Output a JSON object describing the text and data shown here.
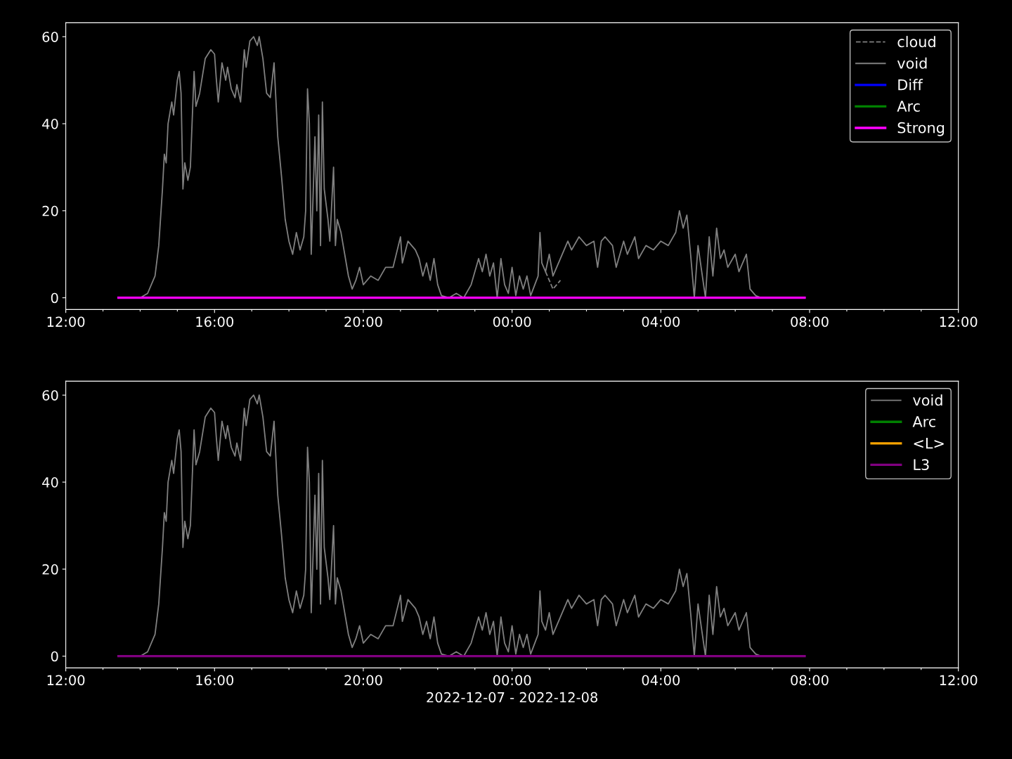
{
  "chart_data": [
    {
      "type": "line",
      "xlim": [
        "2022-12-07T12:00",
        "2022-12-08T12:00"
      ],
      "ylim": [
        -2.7,
        63.2
      ],
      "yticks": [
        0,
        20,
        40,
        60
      ],
      "xticks": [
        {
          "value": "2022-12-07T12:00",
          "label": "12:00"
        },
        {
          "value": "2022-12-07T13:00",
          "label": null
        },
        {
          "value": "2022-12-07T14:00",
          "label": null
        },
        {
          "value": "2022-12-07T15:00",
          "label": null
        },
        {
          "value": "2022-12-07T16:00",
          "label": "16:00"
        },
        {
          "value": "2022-12-07T17:00",
          "label": null
        },
        {
          "value": "2022-12-07T18:00",
          "label": null
        },
        {
          "value": "2022-12-07T19:00",
          "label": null
        },
        {
          "value": "2022-12-07T20:00",
          "label": "20:00"
        },
        {
          "value": "2022-12-07T21:00",
          "label": null
        },
        {
          "value": "2022-12-07T22:00",
          "label": null
        },
        {
          "value": "2022-12-07T23:00",
          "label": null
        },
        {
          "value": "2022-12-08T00:00",
          "label": "00:00"
        },
        {
          "value": "2022-12-08T01:00",
          "label": null
        },
        {
          "value": "2022-12-08T02:00",
          "label": null
        },
        {
          "value": "2022-12-08T03:00",
          "label": null
        },
        {
          "value": "2022-12-08T04:00",
          "label": "04:00"
        },
        {
          "value": "2022-12-08T05:00",
          "label": null
        },
        {
          "value": "2022-12-08T06:00",
          "label": null
        },
        {
          "value": "2022-12-08T07:00",
          "label": null
        },
        {
          "value": "2022-12-08T08:00",
          "label": "08:00"
        },
        {
          "value": "2022-12-08T09:00",
          "label": null
        },
        {
          "value": "2022-12-08T10:00",
          "label": null
        },
        {
          "value": "2022-12-08T11:00",
          "label": null
        },
        {
          "value": "2022-12-08T12:00",
          "label": "12:00"
        }
      ],
      "legend": "top right",
      "grid": false,
      "x": [
        "2022-12-07T13:25",
        "2022-12-07T14:00",
        "2022-12-07T14:12",
        "2022-12-07T14:24",
        "2022-12-07T14:30",
        "2022-12-07T14:36",
        "2022-12-07T14:39",
        "2022-12-07T14:42",
        "2022-12-07T14:45",
        "2022-12-07T14:51",
        "2022-12-07T14:54",
        "2022-12-07T15:00",
        "2022-12-07T15:03",
        "2022-12-07T15:06",
        "2022-12-07T15:09",
        "2022-12-07T15:12",
        "2022-12-07T15:17",
        "2022-12-07T15:21",
        "2022-12-07T15:27",
        "2022-12-07T15:30",
        "2022-12-07T15:36",
        "2022-12-07T15:45",
        "2022-12-07T15:54",
        "2022-12-07T16:00",
        "2022-12-07T16:03",
        "2022-12-07T16:06",
        "2022-12-07T16:12",
        "2022-12-07T16:18",
        "2022-12-07T16:21",
        "2022-12-07T16:27",
        "2022-12-07T16:33",
        "2022-12-07T16:36",
        "2022-12-07T16:42",
        "2022-12-07T16:48",
        "2022-12-07T16:51",
        "2022-12-07T16:57",
        "2022-12-07T17:03",
        "2022-12-07T17:09",
        "2022-12-07T17:12",
        "2022-12-07T17:18",
        "2022-12-07T17:24",
        "2022-12-07T17:30",
        "2022-12-07T17:36",
        "2022-12-07T17:42",
        "2022-12-07T17:48",
        "2022-12-07T17:54",
        "2022-12-07T18:00",
        "2022-12-07T18:06",
        "2022-12-07T18:12",
        "2022-12-07T18:18",
        "2022-12-07T18:24",
        "2022-12-07T18:27",
        "2022-12-07T18:30",
        "2022-12-07T18:33",
        "2022-12-07T18:36",
        "2022-12-07T18:42",
        "2022-12-07T18:45",
        "2022-12-07T18:48",
        "2022-12-07T18:51",
        "2022-12-07T18:54",
        "2022-12-07T18:57",
        "2022-12-07T19:03",
        "2022-12-07T19:06",
        "2022-12-07T19:12",
        "2022-12-07T19:15",
        "2022-12-07T19:18",
        "2022-12-07T19:24",
        "2022-12-07T19:30",
        "2022-12-07T19:36",
        "2022-12-07T19:42",
        "2022-12-07T19:48",
        "2022-12-07T19:54",
        "2022-12-07T20:00",
        "2022-12-07T20:12",
        "2022-12-07T20:24",
        "2022-12-07T20:36",
        "2022-12-07T20:48",
        "2022-12-07T21:00",
        "2022-12-07T21:03",
        "2022-12-07T21:12",
        "2022-12-07T21:24",
        "2022-12-07T21:30",
        "2022-12-07T21:36",
        "2022-12-07T21:42",
        "2022-12-07T21:48",
        "2022-12-07T21:54",
        "2022-12-07T22:00",
        "2022-12-07T22:06",
        "2022-12-07T22:18",
        "2022-12-07T22:30",
        "2022-12-07T22:42",
        "2022-12-07T22:54",
        "2022-12-07T23:06",
        "2022-12-07T23:12",
        "2022-12-07T23:18",
        "2022-12-07T23:24",
        "2022-12-07T23:30",
        "2022-12-07T23:36",
        "2022-12-07T23:42",
        "2022-12-07T23:48",
        "2022-12-07T23:54",
        "2022-12-08T00:00",
        "2022-12-08T00:06",
        "2022-12-08T00:12",
        "2022-12-08T00:18",
        "2022-12-08T00:24",
        "2022-12-08T00:30",
        "2022-12-08T00:42",
        "2022-12-08T00:45",
        "2022-12-08T00:48",
        "2022-12-08T00:54",
        "2022-12-08T01:00",
        "2022-12-08T01:06",
        "2022-12-08T01:18",
        "2022-12-08T01:30",
        "2022-12-08T01:36",
        "2022-12-08T01:48",
        "2022-12-08T02:00",
        "2022-12-08T02:12",
        "2022-12-08T02:18",
        "2022-12-08T02:24",
        "2022-12-08T02:30",
        "2022-12-08T02:42",
        "2022-12-08T02:48",
        "2022-12-08T03:00",
        "2022-12-08T03:06",
        "2022-12-08T03:18",
        "2022-12-08T03:24",
        "2022-12-08T03:36",
        "2022-12-08T03:48",
        "2022-12-08T04:00",
        "2022-12-08T04:12",
        "2022-12-08T04:24",
        "2022-12-08T04:30",
        "2022-12-08T04:36",
        "2022-12-08T04:42",
        "2022-12-08T04:48",
        "2022-12-08T04:54",
        "2022-12-08T05:00",
        "2022-12-08T05:06",
        "2022-12-08T05:12",
        "2022-12-08T05:18",
        "2022-12-08T05:24",
        "2022-12-08T05:30",
        "2022-12-08T05:36",
        "2022-12-08T05:42",
        "2022-12-08T05:48",
        "2022-12-08T06:00",
        "2022-12-08T06:06",
        "2022-12-08T06:18",
        "2022-12-08T06:24",
        "2022-12-08T06:33",
        "2022-12-08T06:42"
      ],
      "series": [
        {
          "name": "cloud",
          "color": "#808080",
          "line_style": "dashed",
          "x": [
            "2022-12-08T00:54",
            "2022-12-08T01:00",
            "2022-12-08T01:06",
            "2022-12-08T01:12",
            "2022-12-08T01:18"
          ],
          "values": [
            6,
            4,
            2,
            3,
            4
          ]
        },
        {
          "name": "void",
          "color": "#808080",
          "line_style": "solid",
          "values": [
            0,
            0,
            1,
            5,
            12,
            25,
            33,
            31,
            40,
            45,
            42,
            50,
            52,
            47,
            25,
            31,
            27,
            30,
            52,
            44,
            47,
            55,
            57,
            56,
            50,
            45,
            54,
            50,
            53,
            48,
            46,
            49,
            45,
            57,
            53,
            59,
            60,
            58,
            60,
            55,
            47,
            46,
            54,
            37,
            28,
            18,
            13,
            10,
            15,
            11,
            14,
            20,
            48,
            40,
            10,
            37,
            20,
            42,
            12,
            45,
            25,
            18,
            13,
            30,
            12,
            18,
            15,
            10,
            5,
            2,
            4,
            7,
            3,
            5,
            4,
            7,
            7,
            14,
            8,
            13,
            11,
            9,
            5,
            8,
            4,
            9,
            3,
            0.5,
            0,
            1,
            0,
            3,
            9,
            6,
            10,
            5,
            8,
            0,
            9,
            3,
            1,
            7,
            0.5,
            5,
            2,
            5,
            0.5,
            5,
            15,
            8,
            6,
            10,
            5,
            9,
            13,
            11,
            14,
            12,
            13,
            7,
            13,
            14,
            12,
            7,
            13,
            10,
            14,
            9,
            12,
            11,
            13,
            12,
            15,
            20,
            16,
            19,
            10,
            0,
            12,
            6,
            0,
            14,
            5,
            16,
            9,
            11,
            7,
            10,
            6,
            10,
            2,
            0.5,
            0
          ]
        },
        {
          "name": "Diff",
          "color": "#0000ff",
          "line_style": "solid",
          "x": [
            null
          ],
          "values": [
            null
          ]
        },
        {
          "name": "Arc",
          "color": "#008000",
          "line_style": "solid",
          "x": [
            null
          ],
          "values": [
            null
          ]
        },
        {
          "name": "Strong",
          "color": "#ff00ff",
          "line_style": "solid",
          "x": [
            "2022-12-07T13:25",
            "2022-12-08T07:52"
          ],
          "values": [
            0,
            0
          ]
        }
      ]
    },
    {
      "type": "line",
      "xlim": [
        "2022-12-07T12:00",
        "2022-12-08T12:00"
      ],
      "ylim": [
        -2.7,
        63.2
      ],
      "yticks": [
        0,
        20,
        40,
        60
      ],
      "xlabel": "2022-12-07 - 2022-12-08",
      "xticks": [
        {
          "value": "2022-12-07T12:00",
          "label": "12:00"
        },
        {
          "value": "2022-12-07T13:00",
          "label": null
        },
        {
          "value": "2022-12-07T14:00",
          "label": null
        },
        {
          "value": "2022-12-07T15:00",
          "label": null
        },
        {
          "value": "2022-12-07T16:00",
          "label": "16:00"
        },
        {
          "value": "2022-12-07T17:00",
          "label": null
        },
        {
          "value": "2022-12-07T18:00",
          "label": null
        },
        {
          "value": "2022-12-07T19:00",
          "label": null
        },
        {
          "value": "2022-12-07T20:00",
          "label": "20:00"
        },
        {
          "value": "2022-12-07T21:00",
          "label": null
        },
        {
          "value": "2022-12-07T22:00",
          "label": null
        },
        {
          "value": "2022-12-07T23:00",
          "label": null
        },
        {
          "value": "2022-12-08T00:00",
          "label": "00:00"
        },
        {
          "value": "2022-12-08T01:00",
          "label": null
        },
        {
          "value": "2022-12-08T02:00",
          "label": null
        },
        {
          "value": "2022-12-08T03:00",
          "label": null
        },
        {
          "value": "2022-12-08T04:00",
          "label": "04:00"
        },
        {
          "value": "2022-12-08T05:00",
          "label": null
        },
        {
          "value": "2022-12-08T06:00",
          "label": null
        },
        {
          "value": "2022-12-08T07:00",
          "label": null
        },
        {
          "value": "2022-12-08T08:00",
          "label": "08:00"
        },
        {
          "value": "2022-12-08T09:00",
          "label": null
        },
        {
          "value": "2022-12-08T10:00",
          "label": null
        },
        {
          "value": "2022-12-08T11:00",
          "label": null
        },
        {
          "value": "2022-12-08T12:00",
          "label": "12:00"
        }
      ],
      "legend": "top right",
      "grid": false,
      "x": [
        "2022-12-07T13:25",
        "2022-12-07T14:00",
        "2022-12-07T14:12",
        "2022-12-07T14:24",
        "2022-12-07T14:30",
        "2022-12-07T14:36",
        "2022-12-07T14:39",
        "2022-12-07T14:42",
        "2022-12-07T14:45",
        "2022-12-07T14:51",
        "2022-12-07T14:54",
        "2022-12-07T15:00",
        "2022-12-07T15:03",
        "2022-12-07T15:06",
        "2022-12-07T15:09",
        "2022-12-07T15:12",
        "2022-12-07T15:17",
        "2022-12-07T15:21",
        "2022-12-07T15:27",
        "2022-12-07T15:30",
        "2022-12-07T15:36",
        "2022-12-07T15:45",
        "2022-12-07T15:54",
        "2022-12-07T16:00",
        "2022-12-07T16:03",
        "2022-12-07T16:06",
        "2022-12-07T16:12",
        "2022-12-07T16:18",
        "2022-12-07T16:21",
        "2022-12-07T16:27",
        "2022-12-07T16:33",
        "2022-12-07T16:36",
        "2022-12-07T16:42",
        "2022-12-07T16:48",
        "2022-12-07T16:51",
        "2022-12-07T16:57",
        "2022-12-07T17:03",
        "2022-12-07T17:09",
        "2022-12-07T17:12",
        "2022-12-07T17:18",
        "2022-12-07T17:24",
        "2022-12-07T17:30",
        "2022-12-07T17:36",
        "2022-12-07T17:42",
        "2022-12-07T17:48",
        "2022-12-07T17:54",
        "2022-12-07T18:00",
        "2022-12-07T18:06",
        "2022-12-07T18:12",
        "2022-12-07T18:18",
        "2022-12-07T18:24",
        "2022-12-07T18:27",
        "2022-12-07T18:30",
        "2022-12-07T18:33",
        "2022-12-07T18:36",
        "2022-12-07T18:42",
        "2022-12-07T18:45",
        "2022-12-07T18:48",
        "2022-12-07T18:51",
        "2022-12-07T18:54",
        "2022-12-07T18:57",
        "2022-12-07T19:03",
        "2022-12-07T19:06",
        "2022-12-07T19:12",
        "2022-12-07T19:15",
        "2022-12-07T19:18",
        "2022-12-07T19:24",
        "2022-12-07T19:30",
        "2022-12-07T19:36",
        "2022-12-07T19:42",
        "2022-12-07T19:48",
        "2022-12-07T19:54",
        "2022-12-07T20:00",
        "2022-12-07T20:12",
        "2022-12-07T20:24",
        "2022-12-07T20:36",
        "2022-12-07T20:48",
        "2022-12-07T21:00",
        "2022-12-07T21:03",
        "2022-12-07T21:12",
        "2022-12-07T21:24",
        "2022-12-07T21:30",
        "2022-12-07T21:36",
        "2022-12-07T21:42",
        "2022-12-07T21:48",
        "2022-12-07T21:54",
        "2022-12-07T22:00",
        "2022-12-07T22:06",
        "2022-12-07T22:18",
        "2022-12-07T22:30",
        "2022-12-07T22:42",
        "2022-12-07T22:54",
        "2022-12-07T23:06",
        "2022-12-07T23:12",
        "2022-12-07T23:18",
        "2022-12-07T23:24",
        "2022-12-07T23:30",
        "2022-12-07T23:36",
        "2022-12-07T23:42",
        "2022-12-07T23:48",
        "2022-12-07T23:54",
        "2022-12-08T00:00",
        "2022-12-08T00:06",
        "2022-12-08T00:12",
        "2022-12-08T00:18",
        "2022-12-08T00:24",
        "2022-12-08T00:30",
        "2022-12-08T00:42",
        "2022-12-08T00:45",
        "2022-12-08T00:48",
        "2022-12-08T00:54",
        "2022-12-08T01:00",
        "2022-12-08T01:06",
        "2022-12-08T01:18",
        "2022-12-08T01:30",
        "2022-12-08T01:36",
        "2022-12-08T01:48",
        "2022-12-08T02:00",
        "2022-12-08T02:12",
        "2022-12-08T02:18",
        "2022-12-08T02:24",
        "2022-12-08T02:30",
        "2022-12-08T02:42",
        "2022-12-08T02:48",
        "2022-12-08T03:00",
        "2022-12-08T03:06",
        "2022-12-08T03:18",
        "2022-12-08T03:24",
        "2022-12-08T03:36",
        "2022-12-08T03:48",
        "2022-12-08T04:00",
        "2022-12-08T04:12",
        "2022-12-08T04:24",
        "2022-12-08T04:30",
        "2022-12-08T04:36",
        "2022-12-08T04:42",
        "2022-12-08T04:48",
        "2022-12-08T04:54",
        "2022-12-08T05:00",
        "2022-12-08T05:06",
        "2022-12-08T05:12",
        "2022-12-08T05:18",
        "2022-12-08T05:24",
        "2022-12-08T05:30",
        "2022-12-08T05:36",
        "2022-12-08T05:42",
        "2022-12-08T05:48",
        "2022-12-08T06:00",
        "2022-12-08T06:06",
        "2022-12-08T06:18",
        "2022-12-08T06:24",
        "2022-12-08T06:33",
        "2022-12-08T06:42"
      ],
      "series": [
        {
          "name": "void",
          "color": "#808080",
          "line_style": "solid",
          "values": [
            0,
            0,
            1,
            5,
            12,
            25,
            33,
            31,
            40,
            45,
            42,
            50,
            52,
            47,
            25,
            31,
            27,
            30,
            52,
            44,
            47,
            55,
            57,
            56,
            50,
            45,
            54,
            50,
            53,
            48,
            46,
            49,
            45,
            57,
            53,
            59,
            60,
            58,
            60,
            55,
            47,
            46,
            54,
            37,
            28,
            18,
            13,
            10,
            15,
            11,
            14,
            20,
            48,
            40,
            10,
            37,
            20,
            42,
            12,
            45,
            25,
            18,
            13,
            30,
            12,
            18,
            15,
            10,
            5,
            2,
            4,
            7,
            3,
            5,
            4,
            7,
            7,
            14,
            8,
            13,
            11,
            9,
            5,
            8,
            4,
            9,
            3,
            0.5,
            0,
            1,
            0,
            3,
            9,
            6,
            10,
            5,
            8,
            0,
            9,
            3,
            1,
            7,
            0.5,
            5,
            2,
            5,
            0.5,
            5,
            15,
            8,
            6,
            10,
            5,
            9,
            13,
            11,
            14,
            12,
            13,
            7,
            13,
            14,
            12,
            7,
            13,
            10,
            14,
            9,
            12,
            11,
            13,
            12,
            15,
            20,
            16,
            19,
            10,
            0,
            12,
            6,
            0,
            14,
            5,
            16,
            9,
            11,
            7,
            10,
            6,
            10,
            2,
            0.5,
            0
          ]
        },
        {
          "name": "Arc",
          "color": "#008000",
          "line_style": "solid",
          "x": [
            null
          ],
          "values": [
            null
          ]
        },
        {
          "name": "<L>",
          "color": "#ffa500",
          "line_style": "solid",
          "x": [
            null
          ],
          "values": [
            null
          ]
        },
        {
          "name": "L3",
          "color": "#800080",
          "line_style": "solid",
          "x": [
            "2022-12-07T13:25",
            "2022-12-08T07:52"
          ],
          "values": [
            0,
            0
          ]
        }
      ]
    }
  ]
}
